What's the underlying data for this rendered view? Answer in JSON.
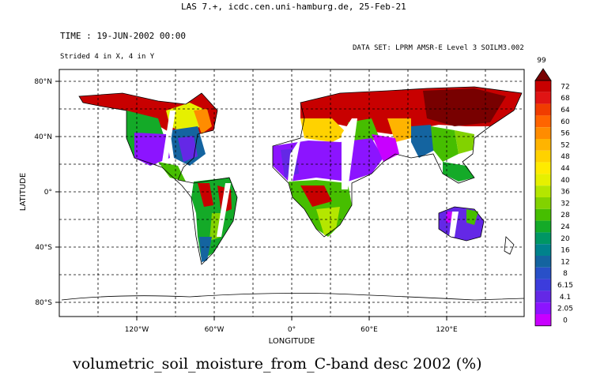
{
  "header": {
    "server_line": "LAS 7.+, icdc.cen.uni-hamburg.de, 25-Feb-21",
    "time_label": "TIME : 19-JUN-2002 00:00",
    "strided_note": "Strided 4 in X, 4 in Y",
    "dataset_label": "DATA SET: LPRM AMSR-E Level 3 SOILM3.002"
  },
  "map": {
    "xlabel": "LONGITUDE",
    "ylabel": "LATITUDE",
    "x_ticks": [
      "120°W",
      "60°W",
      "0°",
      "60°E",
      "120°E"
    ],
    "y_ticks": [
      "80°N",
      "40°N",
      "0°",
      "40°S",
      "80°S"
    ],
    "bottom_title": "volumetric_soil_moisture_from_C-band desc 2002 (%)"
  },
  "colorbar": {
    "top_label": "99",
    "levels": [
      "72",
      "68",
      "64",
      "60",
      "56",
      "52",
      "48",
      "44",
      "40",
      "36",
      "32",
      "28",
      "24",
      "20",
      "16",
      "12",
      "8",
      "6.15",
      "4.1",
      "2.05",
      "0"
    ],
    "colors": [
      "#c80000",
      "#e01414",
      "#f03c00",
      "#ff6400",
      "#ff8c00",
      "#ffb400",
      "#ffd200",
      "#ffeb00",
      "#e6f000",
      "#b4e600",
      "#82d200",
      "#46be00",
      "#14aa28",
      "#009664",
      "#00828c",
      "#1464a0",
      "#2850c8",
      "#3c3cdc",
      "#6428e6",
      "#8c14ff",
      "#c800ff"
    ],
    "overflow_color": "#780000"
  }
}
